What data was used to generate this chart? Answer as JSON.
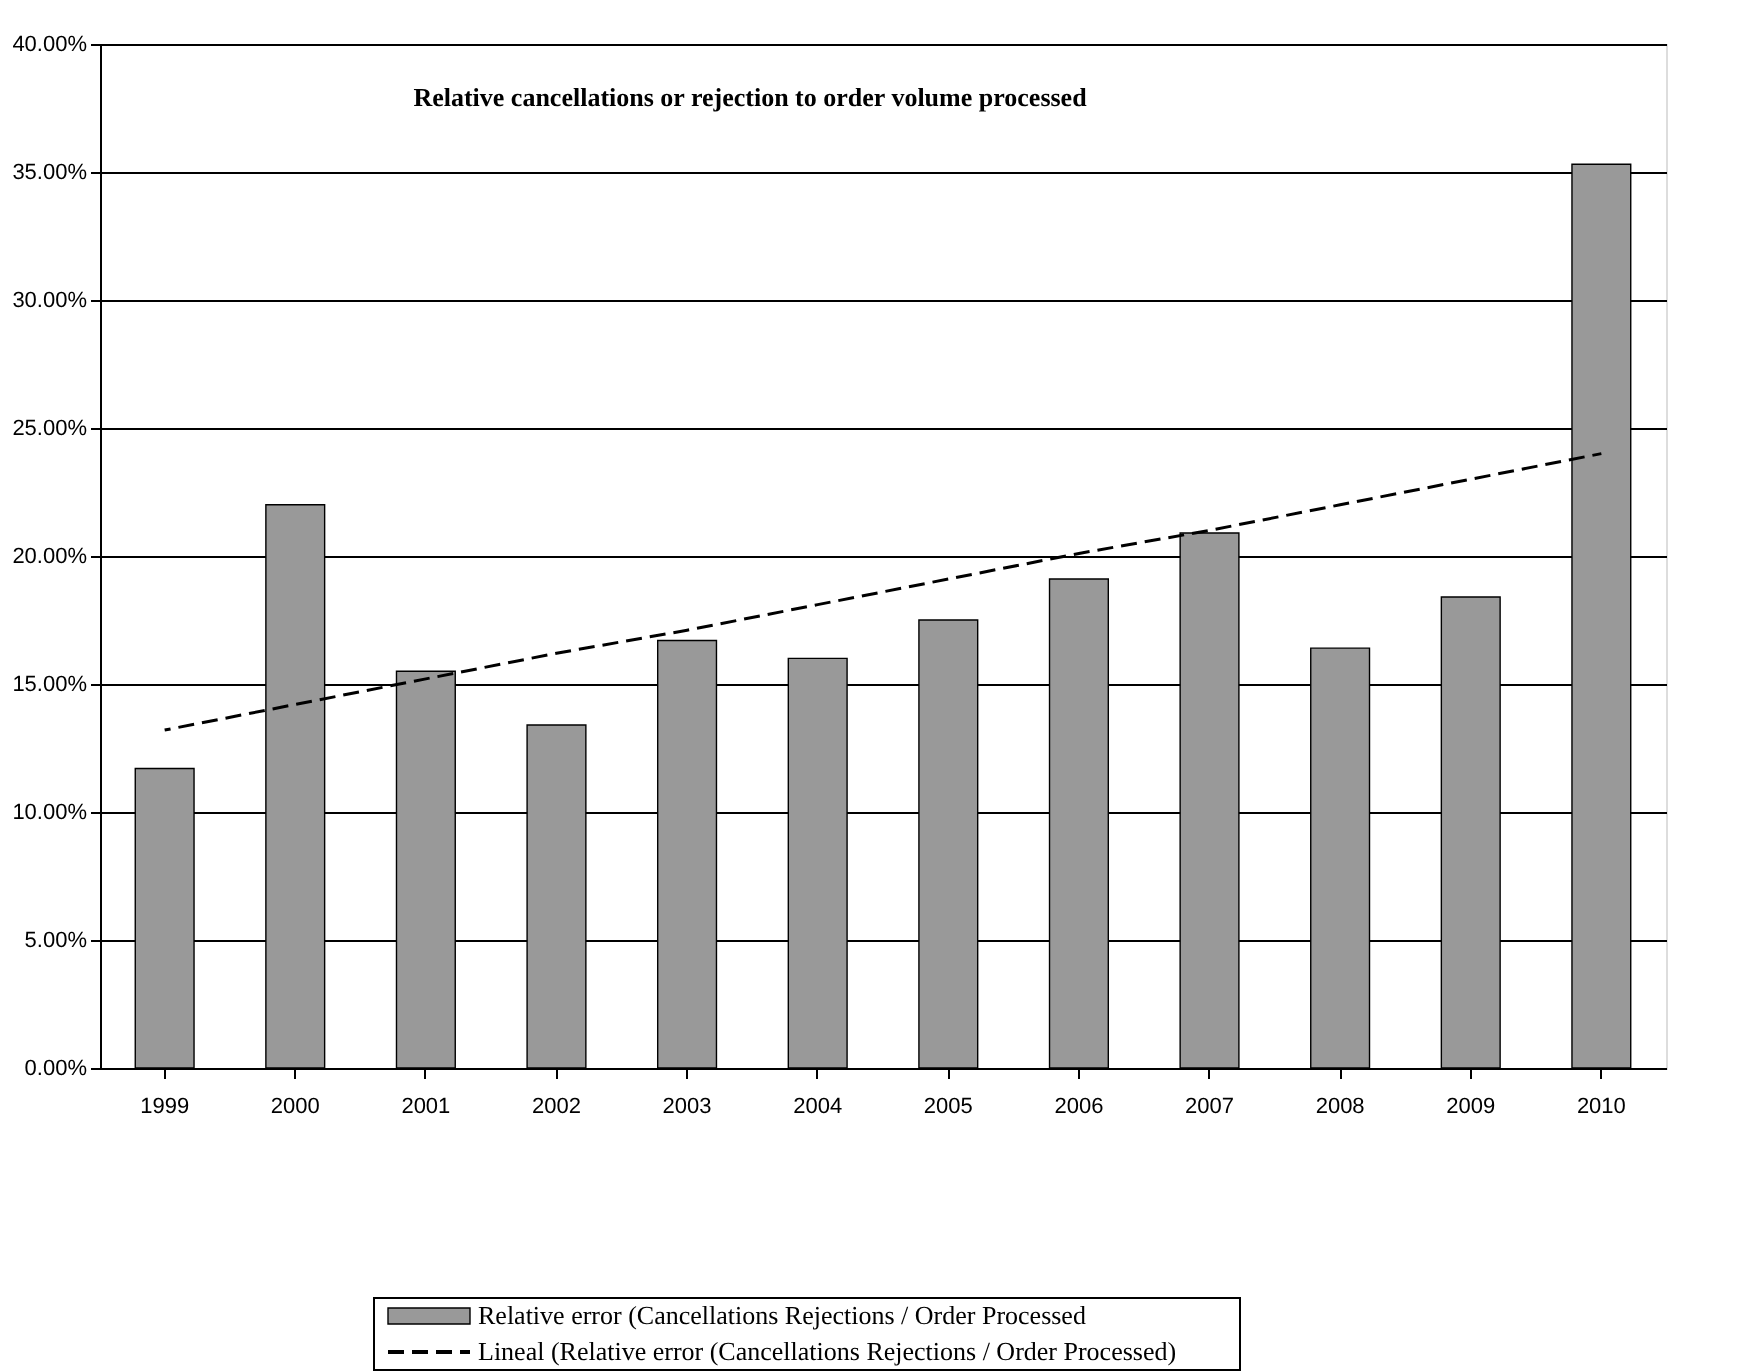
{
  "chart_data": {
    "type": "bar",
    "title": "Relative cancellations or rejection to order volume processed",
    "categories": [
      "1999",
      "2000",
      "2001",
      "2002",
      "2003",
      "2004",
      "2005",
      "2006",
      "2007",
      "2008",
      "2009",
      "2010"
    ],
    "series": [
      {
        "name": "Relative error (Cancellations Rejections / Order Processed",
        "color": "#999999",
        "values": [
          11.7,
          22.0,
          15.5,
          13.4,
          16.7,
          16.0,
          17.5,
          19.1,
          20.9,
          16.4,
          18.4,
          35.3
        ]
      },
      {
        "name": "Lineal (Relative error (Cancellations Rejections / Order Processed)",
        "type": "line",
        "color": "#000000",
        "line_style": "dashed",
        "values": [
          13.2,
          14.2,
          15.2,
          16.2,
          17.1,
          18.1,
          19.1,
          20.1,
          21.0,
          22.0,
          23.0,
          24.0
        ]
      }
    ],
    "ylim": [
      0,
      40
    ],
    "yticks": [
      {
        "value": 0,
        "label": "0.00%"
      },
      {
        "value": 5,
        "label": "5.00%"
      },
      {
        "value": 10,
        "label": "10.00%"
      },
      {
        "value": 15,
        "label": "15.00%"
      },
      {
        "value": 20,
        "label": "20.00%"
      },
      {
        "value": 25,
        "label": "25.00%"
      },
      {
        "value": 30,
        "label": "30.00%"
      },
      {
        "value": 35,
        "label": "35.00%"
      },
      {
        "value": 40,
        "label": "40.00%"
      }
    ],
    "grid": "y",
    "legend": "bottom",
    "marker": "none"
  }
}
